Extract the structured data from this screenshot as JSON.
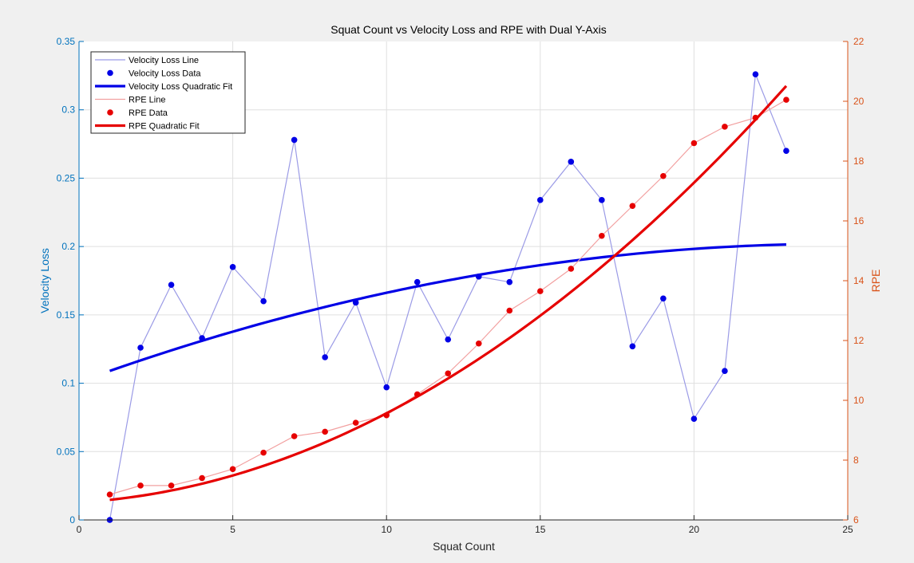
{
  "chart_data": {
    "type": "line",
    "title": "Squat Count vs Velocity Loss and RPE with Dual Y-Axis",
    "xlabel": "Squat Count",
    "ylabel_left": "Velocity Loss",
    "ylabel_right": "RPE",
    "xlim": [
      0,
      25
    ],
    "ylim_left": [
      0,
      0.35
    ],
    "ylim_right": [
      6,
      22
    ],
    "x_ticks": [
      0,
      5,
      10,
      15,
      20,
      25
    ],
    "y_left_ticks": [
      0,
      0.05,
      0.1,
      0.15,
      0.2,
      0.25,
      0.3,
      0.35
    ],
    "y_right_ticks": [
      6,
      8,
      10,
      12,
      14,
      16,
      18,
      20,
      22
    ],
    "grid": true,
    "legend_position": "top-left",
    "x": [
      1,
      2,
      3,
      4,
      5,
      6,
      7,
      8,
      9,
      10,
      11,
      12,
      13,
      14,
      15,
      16,
      17,
      18,
      19,
      20,
      21,
      22,
      23
    ],
    "series": [
      {
        "name": "Velocity Loss Line",
        "axis": "left",
        "style": "line",
        "color": "#9b9be6",
        "values": [
          0.0,
          0.126,
          0.172,
          0.133,
          0.185,
          0.16,
          0.278,
          0.119,
          0.159,
          0.097,
          0.174,
          0.132,
          0.178,
          0.174,
          0.234,
          0.262,
          0.234,
          0.127,
          0.162,
          0.074,
          0.109,
          0.326,
          0.27
        ]
      },
      {
        "name": "Velocity Loss Data",
        "axis": "left",
        "style": "markers",
        "color": "#0000e6",
        "values": [
          0.0,
          0.126,
          0.172,
          0.133,
          0.185,
          0.16,
          0.278,
          0.119,
          0.159,
          0.097,
          0.174,
          0.132,
          0.178,
          0.174,
          0.234,
          0.262,
          0.234,
          0.127,
          0.162,
          0.074,
          0.109,
          0.326,
          0.27
        ]
      },
      {
        "name": "Velocity Loss Quadratic Fit",
        "axis": "left",
        "style": "fit",
        "color": "#0000e6",
        "coefficients": [
          -0.0001653,
          0.00817,
          0.101
        ]
      },
      {
        "name": "RPE Line",
        "axis": "right",
        "style": "line",
        "color": "#f2a0a0",
        "values": [
          6.85,
          7.15,
          7.15,
          7.4,
          7.7,
          8.25,
          8.8,
          8.95,
          9.25,
          9.5,
          10.2,
          10.9,
          11.9,
          13.0,
          13.65,
          14.4,
          15.5,
          16.5,
          17.5,
          18.6,
          19.15,
          19.45,
          20.05
        ]
      },
      {
        "name": "RPE Data",
        "axis": "right",
        "style": "markers",
        "color": "#e60000",
        "values": [
          6.85,
          7.15,
          7.15,
          7.4,
          7.7,
          8.25,
          8.8,
          8.95,
          9.25,
          9.5,
          10.2,
          10.9,
          11.9,
          13.0,
          13.65,
          14.4,
          15.5,
          16.5,
          17.5,
          18.6,
          19.15,
          19.45,
          20.05
        ]
      },
      {
        "name": "RPE Quadratic Fit",
        "axis": "right",
        "style": "fit",
        "color": "#e60000",
        "coefficients": [
          0.02365,
          0.0615,
          6.587
        ]
      }
    ],
    "colors": {
      "left_axis": "#0072bd",
      "right_axis": "#d95319",
      "grid": "#dfdfdf",
      "plot_background": "#ffffff",
      "figure_background": "#f0f0f0"
    }
  }
}
